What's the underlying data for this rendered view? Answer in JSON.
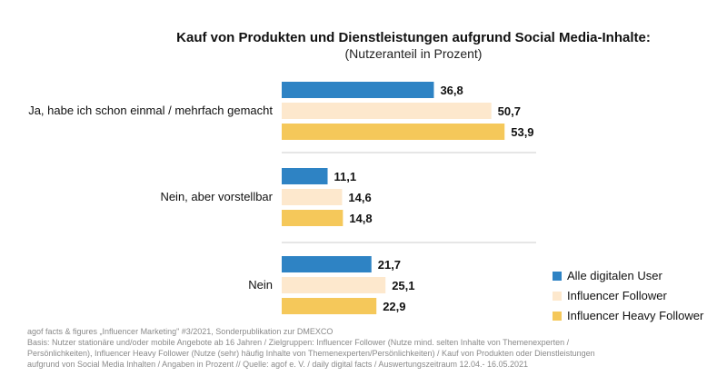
{
  "chart_data": {
    "type": "bar",
    "orientation": "horizontal",
    "title": "Kauf von Produkten und Dienstleistungen aufgrund Social Media-Inhalte:",
    "subtitle": "(Nutzeranteil in Prozent)",
    "categories": [
      "Ja, habe ich schon einmal / mehrfach gemacht",
      "Nein, aber vorstellbar",
      "Nein"
    ],
    "series": [
      {
        "name": "Alle digitalen User",
        "color": "#2e83c4",
        "values": [
          36.8,
          11.1,
          21.7
        ],
        "labels": [
          "36,8",
          "11,1",
          "21,7"
        ]
      },
      {
        "name": "Influencer Follower",
        "color": "#fde8cd",
        "values": [
          50.7,
          14.6,
          25.1
        ],
        "labels": [
          "50,7",
          "14,6",
          "25,1"
        ]
      },
      {
        "name": "Influencer Heavy Follower",
        "color": "#f5c85a",
        "values": [
          53.9,
          14.8,
          22.9
        ],
        "labels": [
          "53,9",
          "14,8",
          "22,9"
        ]
      }
    ],
    "legend_position": "bottom-right",
    "separator_color": "#cccccc",
    "footnote": [
      "agof facts & figures „Influencer Marketing\" #3/2021, Sonderpublikation zur DMEXCO",
      "Basis: Nutzer stationäre und/oder mobile Angebote ab 16 Jahren / Zielgruppen: Influencer Follower (Nutze mind. selten Inhalte von Themenexperten /",
      "Persönlichkeiten), Influencer Heavy Follower (Nutze (sehr) häufig Inhalte von Themenexperten/Persönlichkeiten) / Kauf von Produkten oder Dienstleistungen",
      "aufgrund von Social Media Inhalten / Angaben in Prozent // Quelle: agof e. V. / daily digital facts / Auswertungszeitraum 12.04.- 16.05.2021"
    ]
  }
}
